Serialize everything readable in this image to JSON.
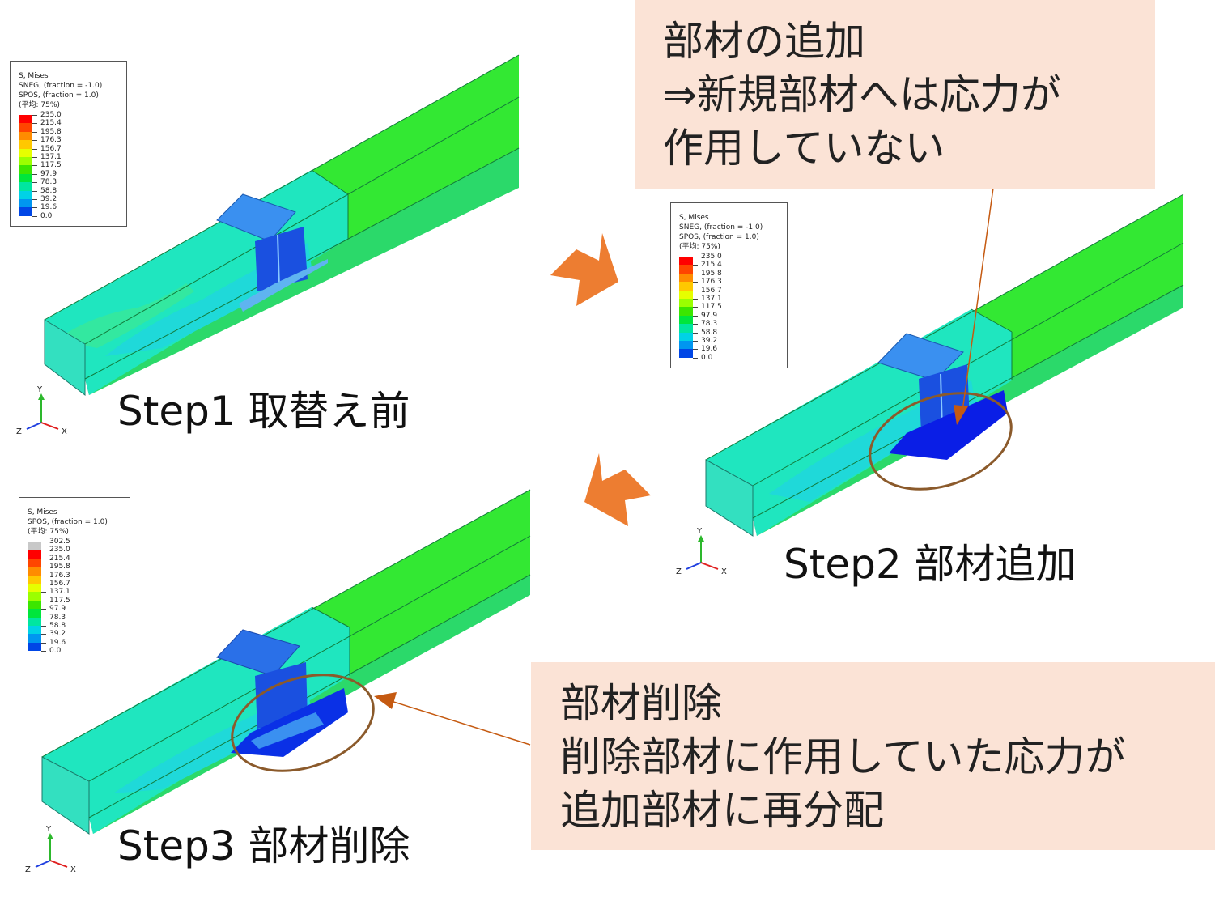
{
  "captions": {
    "step1": "Step1 取替え前",
    "step2": "Step2 部材追加",
    "step3": "Step3 部材削除"
  },
  "callouts": {
    "top": [
      "部材の追加",
      "⇒新規部材へは応力が",
      "作用していない"
    ],
    "bottom": [
      "部材削除",
      "削除部材に作用していた応力が",
      "追加部材に再分配"
    ]
  },
  "legend1": {
    "header": [
      "S, Mises",
      "SNEG, (fraction = -1.0)",
      "SPOS, (fraction = 1.0)",
      "(平均: 75%)"
    ],
    "values": [
      "235.0",
      "215.4",
      "195.8",
      "176.3",
      "156.7",
      "137.1",
      "117.5",
      "97.9",
      "78.3",
      "58.8",
      "39.2",
      "19.6",
      "0.0"
    ]
  },
  "legend2": {
    "header": [
      "S, Mises",
      "SNEG, (fraction = -1.0)",
      "SPOS, (fraction = 1.0)",
      "(平均: 75%)"
    ],
    "values": [
      "235.0",
      "215.4",
      "195.8",
      "176.3",
      "156.7",
      "137.1",
      "117.5",
      "97.9",
      "78.3",
      "58.8",
      "39.2",
      "19.6",
      "0.0"
    ]
  },
  "legend3": {
    "header": [
      "S, Mises",
      "SPOS, (fraction = 1.0)",
      "(平均: 75%)"
    ],
    "values": [
      "302.5",
      "235.0",
      "215.4",
      "195.8",
      "176.3",
      "156.7",
      "137.1",
      "117.5",
      "97.9",
      "78.3",
      "58.8",
      "39.2",
      "19.6",
      "0.0"
    ]
  },
  "axis_labels": {
    "x": "X",
    "y": "Y",
    "z": "Z"
  },
  "colors": {
    "callout_bg": "#fbe3d6",
    "step_arrow": "#ed7d31",
    "highlight_ellipse": "#8b5a2b",
    "beam_green": "#19e619",
    "beam_cyan": "#18e6c4",
    "plate_blue": "#1a7ff0",
    "member_blue": "#0a1ee6"
  },
  "legend_colors": [
    "#ff0000",
    "#ff4500",
    "#ff8c00",
    "#ffc800",
    "#e6ff00",
    "#9bff00",
    "#3ce600",
    "#00e63c",
    "#00e6a0",
    "#00d2e6",
    "#0096f0",
    "#0046e6",
    "#0000e6"
  ],
  "legend3_top_color": "#c8c8c8"
}
